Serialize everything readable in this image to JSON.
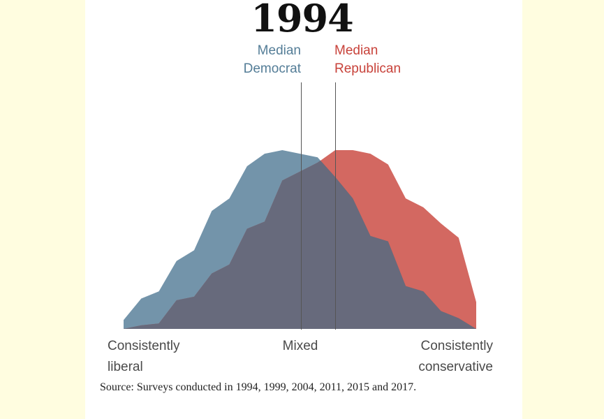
{
  "title": "1994",
  "colors": {
    "democrat": "#547d97",
    "republican": "#c8423a",
    "overlap": "#676a7c",
    "page_background": "#fffde0"
  },
  "median_labels": {
    "democrat": [
      "Median",
      "Democrat"
    ],
    "republican": [
      "Median",
      "Republican"
    ]
  },
  "axis_labels": {
    "left": [
      "Consistently",
      "liberal"
    ],
    "middle": "Mixed",
    "right": [
      "Consistently",
      "conservative"
    ]
  },
  "source": "Source: Surveys conducted in 1994, 1999, 2004, 2011, 2015 and 2017.",
  "chart_data": {
    "type": "area",
    "title": "1994",
    "xlabel": "",
    "ylabel": "",
    "x": [
      -10,
      -9,
      -8,
      -7,
      -6,
      -5,
      -4,
      -3,
      -2,
      -1,
      0,
      1,
      2,
      3,
      4,
      5,
      6,
      7,
      8,
      9,
      10
    ],
    "xlim": [
      -10,
      10
    ],
    "ylim": [
      0,
      100
    ],
    "x_tick_labels": {
      "-10": "Consistently liberal",
      "0": "Mixed",
      "10": "Consistently conservative"
    },
    "series": [
      {
        "name": "Democrat",
        "values": [
          5,
          17,
          21,
          38,
          44,
          66,
          73,
          91,
          98,
          100,
          98,
          96,
          85,
          73,
          52,
          49,
          24,
          21,
          10,
          6,
          0
        ],
        "median_x": 0
      },
      {
        "name": "Republican",
        "values": [
          0,
          2,
          3,
          16,
          18,
          31,
          36,
          56,
          60,
          83,
          88,
          93,
          100,
          100,
          98,
          92,
          73,
          68,
          59,
          51,
          15
        ]
      }
    ],
    "median_republican_x": 2,
    "grid": false,
    "legend": "none"
  }
}
